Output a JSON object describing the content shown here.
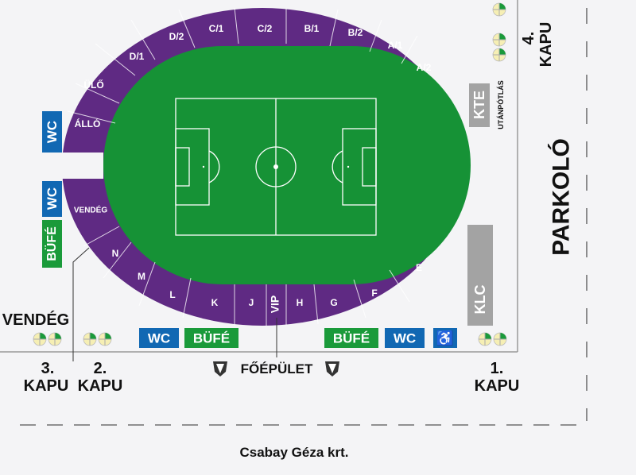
{
  "colors": {
    "stand": "#5f2a83",
    "pitch": "#169236",
    "wc": "#1168b3",
    "bufe": "#1a9a3a",
    "gray": "#a3a3a3",
    "line": "#ffffff"
  },
  "sections": {
    "top": [
      "D/2",
      "C/1",
      "C/2",
      "B/1",
      "B/2",
      "A/1",
      "A/2"
    ],
    "left_top": [
      "ÁLLÓ",
      "ÜLŐ",
      "D/1"
    ],
    "left_bottom": [
      "VENDÉG",
      "N"
    ],
    "bottom": [
      "M",
      "L",
      "K",
      "J",
      "VIP",
      "H",
      "G",
      "F",
      "E"
    ]
  },
  "facilities": {
    "wc": "WC",
    "bufe": "BÜFÉ",
    "kte": "KTE",
    "utanpotlas": "UTÁNPÓTLÁS",
    "klc": "KLC",
    "accessible_icon": "wheelchair-icon",
    "gate_icon": "turnstile-icon",
    "club_icon": "club-crest-icon"
  },
  "labels": {
    "vendeg": "VENDÉG",
    "gate3_num": "3.",
    "gate3": "KAPU",
    "gate2_num": "2.",
    "gate2": "KAPU",
    "gate1_num": "1.",
    "gate1": "KAPU",
    "gate4_num": "4.",
    "gate4": "KAPU",
    "main_building": "FŐÉPÜLET",
    "parking": "PARKOLÓ",
    "street": "Csabay Géza krt."
  }
}
